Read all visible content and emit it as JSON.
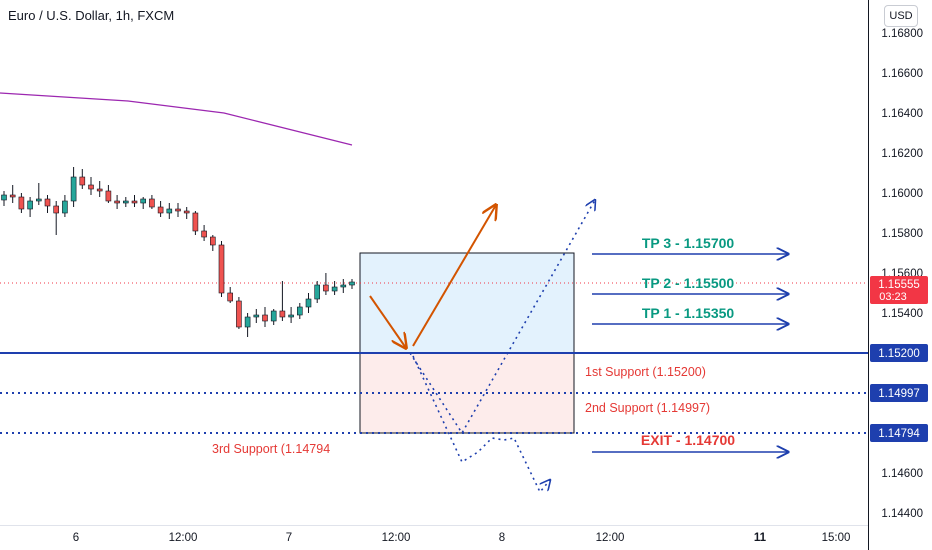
{
  "header": {
    "title": "Euro / U.S. Dollar, 1h, FXCM",
    "currency": "USD"
  },
  "colors": {
    "up": "#26a69a",
    "down": "#ef5350",
    "ma": "#9c27b0",
    "support": "#1e3fae",
    "tp_text": "#089981",
    "arrow": "#1e3fae",
    "path_orange": "#d35400",
    "annot_red": "#e53935",
    "price_tag": "#f23645"
  },
  "chart_data": {
    "type": "candlestick",
    "y_axis": {
      "ticks": [
        "1.16800",
        "1.16600",
        "1.16400",
        "1.16200",
        "1.16000",
        "1.15800",
        "1.15600",
        "1.15400",
        "1.14600",
        "1.14400"
      ],
      "ylim": [
        1.1432,
        1.1695
      ]
    },
    "x_axis": {
      "ticks": [
        "6",
        "12:00",
        "7",
        "12:00",
        "8",
        "12:00",
        "11",
        "15:00"
      ]
    },
    "current_price": "1.15555",
    "countdown": "03:23",
    "levels": [
      {
        "label": "1.15200",
        "value": 1.152,
        "style": "solid"
      },
      {
        "label": "1.14997",
        "value": 1.14997,
        "style": "dotted"
      },
      {
        "label": "1.14794",
        "value": 1.14794,
        "style": "dotted"
      }
    ],
    "zones": [
      {
        "name": "long",
        "top": 1.157,
        "bottom": 1.152
      },
      {
        "name": "risk",
        "top": 1.152,
        "bottom": 1.14794
      }
    ],
    "annotations": {
      "tp3": "TP 3 - 1.15700",
      "tp2": "TP 2 - 1.15500",
      "tp1": "TP 1 - 1.15350",
      "s1": "1st Support (1.15200)",
      "s2": "2nd Support (1.14997)",
      "s3": "3rd Support (1.14794",
      "exit": "EXIT - 1.14700"
    },
    "moving_average": [
      1.165,
      1.1649,
      1.1648,
      1.1647,
      1.1646,
      1.1644,
      1.1642,
      1.164,
      1.1636,
      1.1632,
      1.1628,
      1.1624
    ],
    "candles": [
      [
        1.15965,
        1.1601,
        1.15935,
        1.1599
      ],
      [
        1.1599,
        1.1604,
        1.1595,
        1.1598
      ],
      [
        1.1598,
        1.16,
        1.159,
        1.1592
      ],
      [
        1.1592,
        1.1598,
        1.1588,
        1.1596
      ],
      [
        1.1596,
        1.1605,
        1.1594,
        1.1597
      ],
      [
        1.1597,
        1.1599,
        1.159,
        1.15935
      ],
      [
        1.15935,
        1.1596,
        1.1579,
        1.159
      ],
      [
        1.159,
        1.1599,
        1.1588,
        1.1596
      ],
      [
        1.1596,
        1.1613,
        1.1593,
        1.1608
      ],
      [
        1.1608,
        1.1612,
        1.1602,
        1.1604
      ],
      [
        1.1604,
        1.1608,
        1.1599,
        1.1602
      ],
      [
        1.1602,
        1.1606,
        1.1598,
        1.1601
      ],
      [
        1.1601,
        1.1604,
        1.1595,
        1.1596
      ],
      [
        1.1596,
        1.1599,
        1.1592,
        1.1595
      ],
      [
        1.1595,
        1.1598,
        1.1593,
        1.1596
      ],
      [
        1.1596,
        1.1599,
        1.1593,
        1.1595
      ],
      [
        1.1595,
        1.1598,
        1.1592,
        1.1597
      ],
      [
        1.1597,
        1.1599,
        1.1592,
        1.1593
      ],
      [
        1.1593,
        1.1596,
        1.1588,
        1.159
      ],
      [
        1.159,
        1.1595,
        1.1587,
        1.1592
      ],
      [
        1.1592,
        1.1595,
        1.1588,
        1.1591
      ],
      [
        1.1591,
        1.1593,
        1.1587,
        1.159
      ],
      [
        1.159,
        1.1591,
        1.1579,
        1.1581
      ],
      [
        1.1581,
        1.1584,
        1.1576,
        1.1578
      ],
      [
        1.1578,
        1.1579,
        1.1571,
        1.1574
      ],
      [
        1.1574,
        1.1576,
        1.1548,
        1.155
      ],
      [
        1.155,
        1.1553,
        1.1545,
        1.1546
      ],
      [
        1.1546,
        1.1548,
        1.1532,
        1.1533
      ],
      [
        1.1533,
        1.154,
        1.1528,
        1.1538
      ],
      [
        1.1538,
        1.1542,
        1.1535,
        1.1539
      ],
      [
        1.1539,
        1.1543,
        1.1533,
        1.1536
      ],
      [
        1.1536,
        1.1542,
        1.1534,
        1.1541
      ],
      [
        1.1541,
        1.1556,
        1.1536,
        1.1538
      ],
      [
        1.1538,
        1.1543,
        1.1535,
        1.1539
      ],
      [
        1.1539,
        1.1545,
        1.1537,
        1.1543
      ],
      [
        1.1543,
        1.155,
        1.154,
        1.1547
      ],
      [
        1.1547,
        1.1556,
        1.1545,
        1.1554
      ],
      [
        1.1554,
        1.156,
        1.1549,
        1.1551
      ],
      [
        1.1551,
        1.1556,
        1.1549,
        1.1553
      ],
      [
        1.1553,
        1.1557,
        1.155,
        1.1554
      ],
      [
        1.1554,
        1.1557,
        1.1552,
        1.15555
      ]
    ]
  }
}
